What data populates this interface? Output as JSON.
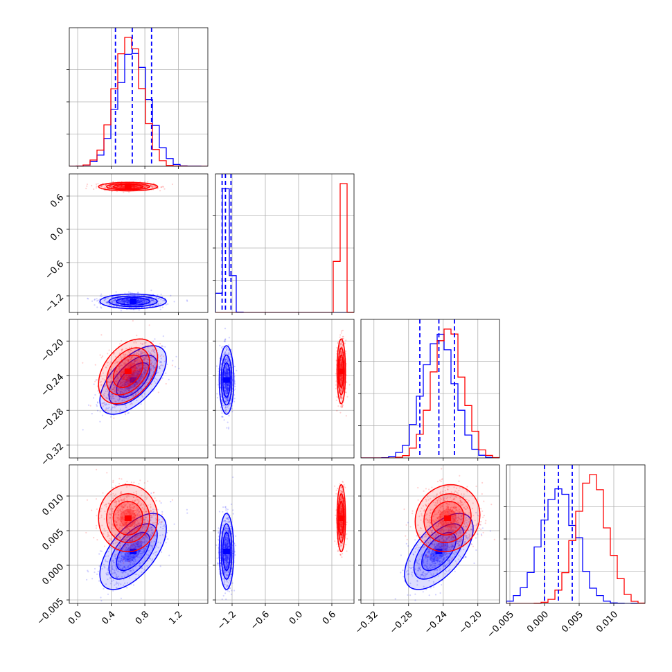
{
  "chart_data": {
    "type": "corner",
    "grid": true,
    "legend": "none",
    "colors": {
      "series_a": "#0000ff",
      "series_b": "#ff0000",
      "grid": "#b0b0b0"
    },
    "series": [
      {
        "color": "#0000ff",
        "means": [
          0.66,
          -1.3,
          -0.245,
          0.002
        ],
        "sds": [
          0.18,
          0.06,
          0.018,
          0.0025
        ],
        "correlations": {
          "0-2": 0.6,
          "0-3": 0.6,
          "2-3": 0.6
        }
      },
      {
        "color": "#ff0000",
        "means": [
          0.6,
          0.77,
          -0.235,
          0.0068
        ],
        "sds": [
          0.16,
          0.035,
          0.017,
          0.0022
        ],
        "correlations": {
          "0-2": 0.4,
          "0-3": 0.0,
          "2-3": 0.1
        }
      }
    ],
    "quantile_lines": [
      [
        0.45,
        0.65,
        0.88
      ],
      [
        -1.38,
        -1.32,
        -1.22
      ],
      [
        -0.267,
        -0.245,
        -0.227
      ],
      [
        0.0,
        0.002,
        0.004
      ]
    ],
    "axes": [
      {
        "range": [
          -0.1,
          1.55
        ],
        "ticks": [
          "0.0",
          "0.4",
          "0.8",
          "1.2"
        ],
        "tick_values": [
          0.0,
          0.4,
          0.8,
          1.2
        ]
      },
      {
        "range": [
          -1.5,
          1.0
        ],
        "ticks": [
          "−1.2",
          "−0.6",
          "0.0",
          "0.6"
        ],
        "tick_values": [
          -1.2,
          -0.6,
          0.0,
          0.6
        ]
      },
      {
        "range": [
          -0.335,
          -0.175
        ],
        "ticks": [
          "−0.32",
          "−0.28",
          "−0.24",
          "−0.20"
        ],
        "tick_values": [
          -0.32,
          -0.28,
          -0.24,
          -0.2
        ]
      },
      {
        "range": [
          -0.0055,
          0.0145
        ],
        "ticks": [
          "−0.005",
          "0.000",
          "0.005",
          "0.010"
        ],
        "tick_values": [
          -0.005,
          0.0,
          0.005,
          0.01
        ]
      }
    ]
  }
}
